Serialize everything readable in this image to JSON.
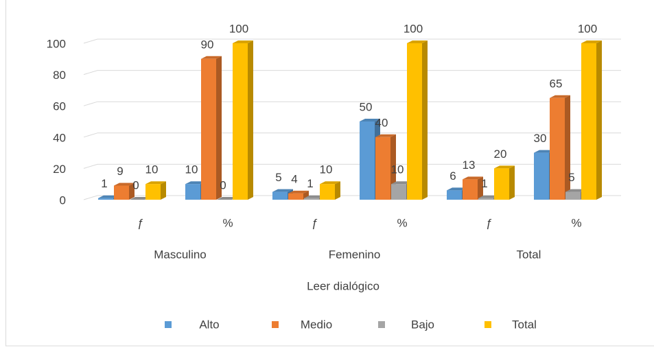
{
  "chart_data": {
    "type": "bar3d",
    "x_label": "Leer dialógico",
    "categories": [
      "ƒ",
      "%",
      "ƒ",
      "%",
      "ƒ",
      "%"
    ],
    "groups": [
      "Masculino",
      "Femenino",
      "Total"
    ],
    "series": [
      {
        "name": "Alto",
        "color": "#5b9bd5",
        "values": [
          1,
          10,
          5,
          50,
          6,
          30
        ]
      },
      {
        "name": "Medio",
        "color": "#ed7d31",
        "values": [
          9,
          90,
          4,
          40,
          13,
          65
        ]
      },
      {
        "name": "Bajo",
        "color": "#a5a5a5",
        "values": [
          0,
          0,
          1,
          10,
          1,
          5
        ]
      },
      {
        "name": "Total",
        "color": "#ffc000",
        "values": [
          10,
          100,
          10,
          100,
          20,
          100
        ]
      }
    ],
    "ylim": [
      0,
      100
    ],
    "yticks": [
      0,
      20,
      40,
      60,
      80,
      100
    ],
    "grid": true,
    "legend": "bottom"
  }
}
